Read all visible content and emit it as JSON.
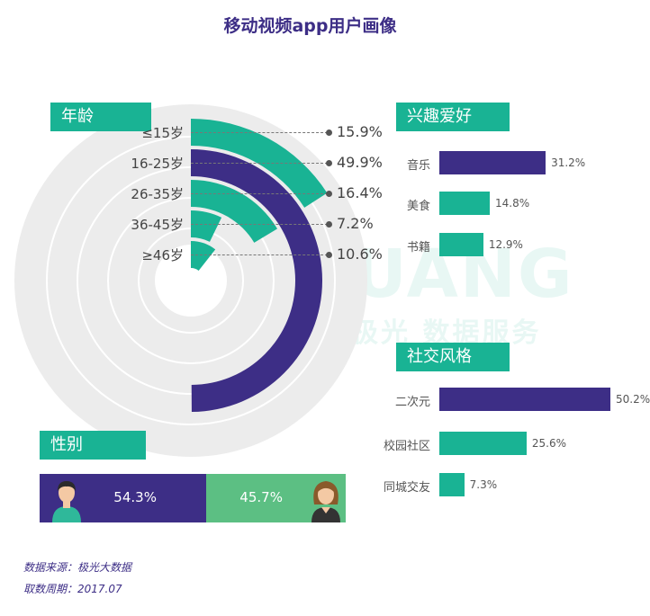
{
  "title": "移动视频app用户画像",
  "watermark": {
    "brand": "JIGUANG",
    "sub": "极光 数据服务"
  },
  "colors": {
    "purple": "#3d2e86",
    "teal": "#19b394",
    "green": "#5cbf83"
  },
  "sections": {
    "age": "年龄",
    "interests": "兴趣爱好",
    "social": "社交风格",
    "gender": "性别"
  },
  "chart_data": [
    {
      "type": "radial-bar",
      "categories": [
        "≤15岁",
        "16-25岁",
        "26-35岁",
        "36-45岁",
        "≥46岁"
      ],
      "values": [
        15.9,
        49.9,
        16.4,
        7.2,
        10.6
      ],
      "labels": [
        "15.9%",
        "49.9%",
        "16.4%",
        "7.2%",
        "10.6%"
      ],
      "title": "年龄"
    },
    {
      "type": "bar",
      "categories": [
        "音乐",
        "美食",
        "书籍"
      ],
      "values": [
        31.2,
        14.8,
        12.9
      ],
      "labels": [
        "31.2%",
        "14.8%",
        "12.9%"
      ],
      "title": "兴趣爱好"
    },
    {
      "type": "bar",
      "categories": [
        "二次元",
        "校园社区",
        "同城交友"
      ],
      "values": [
        50.2,
        25.6,
        7.3
      ],
      "labels": [
        "50.2%",
        "25.6%",
        "7.3%"
      ],
      "title": "社交风格"
    },
    {
      "type": "bar",
      "categories": [
        "male",
        "female"
      ],
      "values": [
        54.3,
        45.7
      ],
      "labels": [
        "54.3%",
        "45.7%"
      ],
      "title": "性别"
    }
  ],
  "footer": {
    "source": "数据来源：极光大数据",
    "period": "取数周期：2017.07"
  }
}
